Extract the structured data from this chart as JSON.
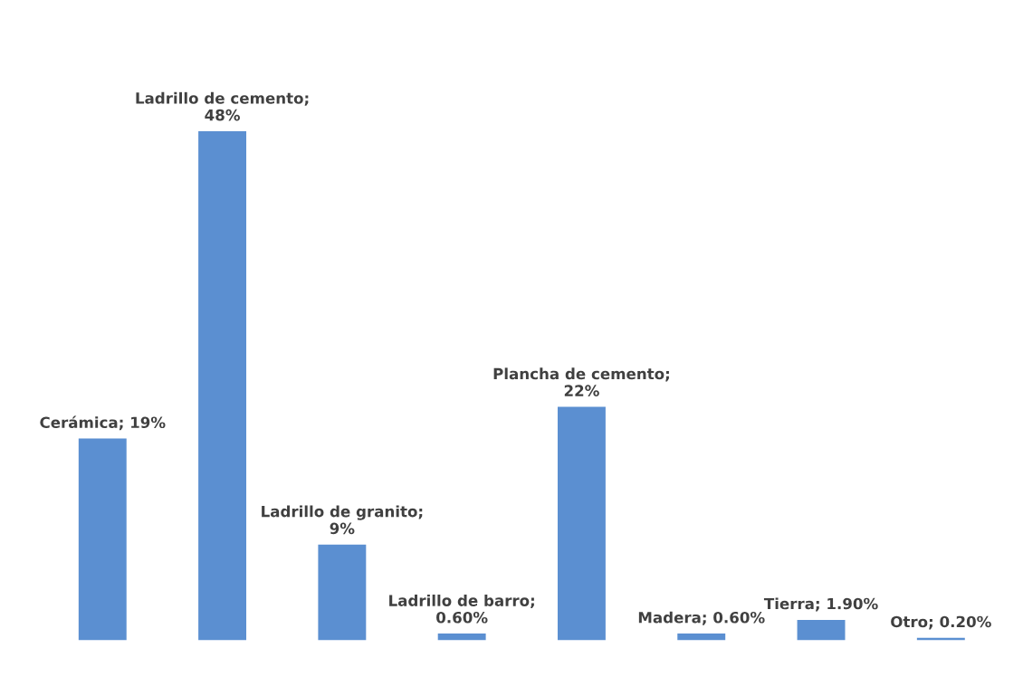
{
  "chart_data": {
    "type": "bar",
    "categories": [
      null,
      null,
      null,
      null,
      null,
      null,
      null,
      null
    ],
    "values": [
      19,
      48,
      9,
      0.6,
      22,
      0.6,
      1.9,
      0.2
    ],
    "value_labels": [
      "Cerámica; 19%",
      "Ladrillo de cemento; 48%",
      "Ladrillo de granito; 9%",
      "Ladrillo de barro; 0.60%",
      "Plancha de cemento; 22%",
      "Madera; 0.60%",
      "Tierra; 1.90%",
      "Otro; 0.20%"
    ],
    "color": "#5b8fd1"
  }
}
